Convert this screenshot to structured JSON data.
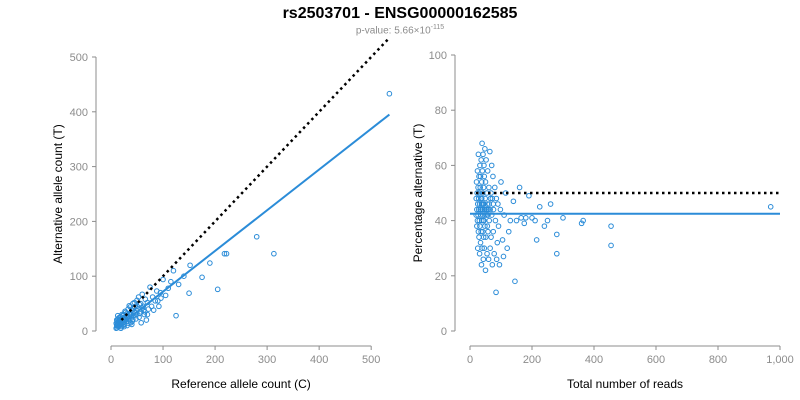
{
  "title": "rs2503701 - ENSG00000162585",
  "subtitle": {
    "prefix": "p-value: 5.66×10",
    "exponent": "-115"
  },
  "colors": {
    "points": "#2b8cd8",
    "fit_line": "#2b8cd8",
    "reference_line": "#000000",
    "axis": "#8c8c8c"
  },
  "chart_data": [
    {
      "type": "scatter",
      "xlabel": "Reference allele count (C)",
      "ylabel": "Alternative allele count (T)",
      "xlim": [
        0,
        540
      ],
      "ylim": [
        0,
        500
      ],
      "xticks": [
        0,
        100,
        200,
        300,
        400,
        500
      ],
      "xtick_labels": [
        "0",
        "100",
        "200",
        "300",
        "400",
        "500"
      ],
      "yticks": [
        0,
        100,
        200,
        300,
        400,
        500
      ],
      "ytick_labels": [
        "0",
        "100",
        "200",
        "300",
        "400",
        "500"
      ],
      "grid": false,
      "reference_line": {
        "style": "dotted",
        "x": [
          20,
          535
        ],
        "y": [
          20,
          535
        ]
      },
      "fit_line": {
        "style": "solid",
        "x": [
          10,
          535
        ],
        "y": [
          5,
          395
        ]
      },
      "points": [
        [
          535,
          433
        ],
        [
          313,
          141
        ],
        [
          280,
          172
        ],
        [
          222,
          141
        ],
        [
          218,
          141
        ],
        [
          205,
          76
        ],
        [
          190,
          124
        ],
        [
          175,
          98
        ],
        [
          152,
          120
        ],
        [
          150,
          69
        ],
        [
          130,
          85
        ],
        [
          120,
          110
        ],
        [
          110,
          78
        ],
        [
          100,
          94
        ],
        [
          96,
          60
        ],
        [
          92,
          45
        ],
        [
          88,
          73
        ],
        [
          85,
          55
        ],
        [
          80,
          62
        ],
        [
          75,
          80
        ],
        [
          72,
          40
        ],
        [
          70,
          52
        ],
        [
          66,
          58
        ],
        [
          64,
          30
        ],
        [
          62,
          45
        ],
        [
          60,
          67
        ],
        [
          58,
          35
        ],
        [
          55,
          48
        ],
        [
          54,
          25
        ],
        [
          52,
          40
        ],
        [
          50,
          56
        ],
        [
          49,
          30
        ],
        [
          48,
          22
        ],
        [
          46,
          44
        ],
        [
          45,
          35
        ],
        [
          44,
          28
        ],
        [
          42,
          50
        ],
        [
          41,
          18
        ],
        [
          40,
          38
        ],
        [
          39,
          26
        ],
        [
          38,
          32
        ],
        [
          37,
          44
        ],
        [
          36,
          20
        ],
        [
          35,
          30
        ],
        [
          34,
          14
        ],
        [
          33,
          40
        ],
        [
          32,
          24
        ],
        [
          31,
          32
        ],
        [
          30,
          18
        ],
        [
          29,
          28
        ],
        [
          28,
          22
        ],
        [
          27,
          36
        ],
        [
          26,
          12
        ],
        [
          26,
          20
        ],
        [
          25,
          30
        ],
        [
          24,
          16
        ],
        [
          24,
          24
        ],
        [
          23,
          10
        ],
        [
          22,
          20
        ],
        [
          22,
          28
        ],
        [
          21,
          14
        ],
        [
          20,
          22
        ],
        [
          20,
          8
        ],
        [
          19,
          18
        ],
        [
          18,
          26
        ],
        [
          18,
          12
        ],
        [
          17,
          16
        ],
        [
          16,
          20
        ],
        [
          16,
          10
        ],
        [
          15,
          14
        ],
        [
          15,
          24
        ],
        [
          14,
          8
        ],
        [
          14,
          18
        ],
        [
          13,
          12
        ],
        [
          13,
          22
        ],
        [
          12,
          6
        ],
        [
          12,
          16
        ],
        [
          11,
          10
        ],
        [
          11,
          20
        ],
        [
          10,
          14
        ],
        [
          10,
          5
        ],
        [
          60,
          42
        ],
        [
          65,
          35
        ],
        [
          70,
          30
        ],
        [
          78,
          45
        ],
        [
          82,
          38
        ],
        [
          90,
          55
        ],
        [
          95,
          70
        ],
        [
          105,
          65
        ],
        [
          115,
          90
        ],
        [
          125,
          28
        ],
        [
          140,
          100
        ],
        [
          68,
          20
        ],
        [
          58,
          15
        ],
        [
          48,
          38
        ],
        [
          43,
          42
        ],
        [
          38,
          15
        ],
        [
          33,
          26
        ],
        [
          28,
          34
        ],
        [
          53,
          62
        ],
        [
          57,
          50
        ],
        [
          63,
          38
        ],
        [
          47,
          33
        ],
        [
          42,
          21
        ],
        [
          37,
          29
        ],
        [
          31,
          10
        ],
        [
          25,
          8
        ],
        [
          21,
          30
        ],
        [
          19,
          5
        ],
        [
          17,
          24
        ],
        [
          13,
          28
        ],
        [
          35,
          46
        ],
        [
          40,
          12
        ],
        [
          45,
          52
        ],
        [
          50,
          45
        ],
        [
          55,
          32
        ]
      ]
    },
    {
      "type": "scatter",
      "xlabel": "Total number of reads",
      "ylabel": "Percentage alternative (T)",
      "xlim": [
        0,
        1000
      ],
      "ylim": [
        0,
        100
      ],
      "xticks": [
        0,
        200,
        400,
        600,
        800,
        1000
      ],
      "xtick_labels": [
        "0",
        "200",
        "400",
        "600",
        "800",
        "1,000"
      ],
      "yticks": [
        0,
        20,
        40,
        60,
        80,
        100
      ],
      "ytick_labels": [
        "0",
        "20",
        "40",
        "60",
        "80",
        "100"
      ],
      "grid": false,
      "reference_line": {
        "style": "dotted",
        "x": [
          0,
          1000
        ],
        "y": [
          50,
          50
        ]
      },
      "fit_line": {
        "style": "solid",
        "x": [
          0,
          1000
        ],
        "y": [
          42.5,
          42.5
        ]
      },
      "points": [
        [
          970,
          45
        ],
        [
          455,
          38
        ],
        [
          455,
          31
        ],
        [
          365,
          40
        ],
        [
          360,
          39
        ],
        [
          300,
          41
        ],
        [
          280,
          35
        ],
        [
          280,
          28
        ],
        [
          260,
          46
        ],
        [
          250,
          40
        ],
        [
          240,
          38
        ],
        [
          225,
          45
        ],
        [
          215,
          33
        ],
        [
          210,
          40
        ],
        [
          200,
          41
        ],
        [
          190,
          49
        ],
        [
          180,
          41
        ],
        [
          175,
          39
        ],
        [
          165,
          41
        ],
        [
          160,
          52
        ],
        [
          150,
          40
        ],
        [
          145,
          18
        ],
        [
          140,
          47
        ],
        [
          130,
          40
        ],
        [
          125,
          36
        ],
        [
          120,
          30
        ],
        [
          115,
          50
        ],
        [
          110,
          42
        ],
        [
          108,
          27
        ],
        [
          105,
          33
        ],
        [
          100,
          54
        ],
        [
          98,
          44
        ],
        [
          95,
          24
        ],
        [
          92,
          38
        ],
        [
          90,
          46
        ],
        [
          88,
          32
        ],
        [
          86,
          26
        ],
        [
          85,
          48
        ],
        [
          84,
          14
        ],
        [
          82,
          40
        ],
        [
          80,
          52
        ],
        [
          78,
          28
        ],
        [
          76,
          44
        ],
        [
          75,
          36
        ],
        [
          74,
          56
        ],
        [
          72,
          24
        ],
        [
          70,
          42
        ],
        [
          70,
          60
        ],
        [
          68,
          34
        ],
        [
          66,
          48
        ],
        [
          65,
          30
        ],
        [
          64,
          65
        ],
        [
          62,
          40
        ],
        [
          61,
          52
        ],
        [
          60,
          26
        ],
        [
          59,
          44
        ],
        [
          58,
          36
        ],
        [
          57,
          58
        ],
        [
          56,
          46
        ],
        [
          55,
          28
        ],
        [
          54,
          50
        ],
        [
          53,
          42
        ],
        [
          52,
          62
        ],
        [
          51,
          34
        ],
        [
          50,
          54
        ],
        [
          50,
          22
        ],
        [
          49,
          48
        ],
        [
          48,
          38
        ],
        [
          48,
          66
        ],
        [
          47,
          44
        ],
        [
          46,
          30
        ],
        [
          46,
          56
        ],
        [
          45,
          40
        ],
        [
          45,
          60
        ],
        [
          44,
          34
        ],
        [
          44,
          52
        ],
        [
          43,
          46
        ],
        [
          43,
          26
        ],
        [
          42,
          42
        ],
        [
          42,
          64
        ],
        [
          41,
          36
        ],
        [
          41,
          50
        ],
        [
          40,
          44
        ],
        [
          40,
          58
        ],
        [
          39,
          30
        ],
        [
          39,
          68
        ],
        [
          38,
          40
        ],
        [
          38,
          54
        ],
        [
          37,
          46
        ],
        [
          37,
          24
        ],
        [
          36,
          36
        ],
        [
          36,
          62
        ],
        [
          35,
          48
        ],
        [
          35,
          42
        ],
        [
          34,
          56
        ],
        [
          34,
          32
        ],
        [
          33,
          44
        ],
        [
          33,
          52
        ],
        [
          32,
          38
        ],
        [
          32,
          60
        ],
        [
          31,
          28
        ],
        [
          31,
          46
        ],
        [
          30,
          50
        ],
        [
          30,
          40
        ],
        [
          29,
          34
        ],
        [
          29,
          56
        ],
        [
          28,
          44
        ],
        [
          28,
          48
        ],
        [
          27,
          36
        ],
        [
          27,
          64
        ],
        [
          26,
          42
        ],
        [
          26,
          52
        ],
        [
          25,
          30
        ],
        [
          25,
          46
        ],
        [
          24,
          40
        ],
        [
          24,
          58
        ],
        [
          23,
          50
        ],
        [
          22,
          38
        ],
        [
          22,
          44
        ],
        [
          21,
          54
        ],
        [
          20,
          42
        ],
        [
          20,
          48
        ],
        [
          65,
          44
        ],
        [
          72,
          48
        ],
        [
          55,
          44
        ],
        [
          62,
          46
        ],
        [
          58,
          42
        ],
        [
          45,
          46
        ],
        [
          52,
          44
        ],
        [
          48,
          42
        ],
        [
          40,
          46
        ],
        [
          35,
          44
        ],
        [
          43,
          40
        ],
        [
          38,
          48
        ],
        [
          56,
          38
        ],
        [
          68,
          50
        ],
        [
          75,
          46
        ]
      ]
    }
  ]
}
